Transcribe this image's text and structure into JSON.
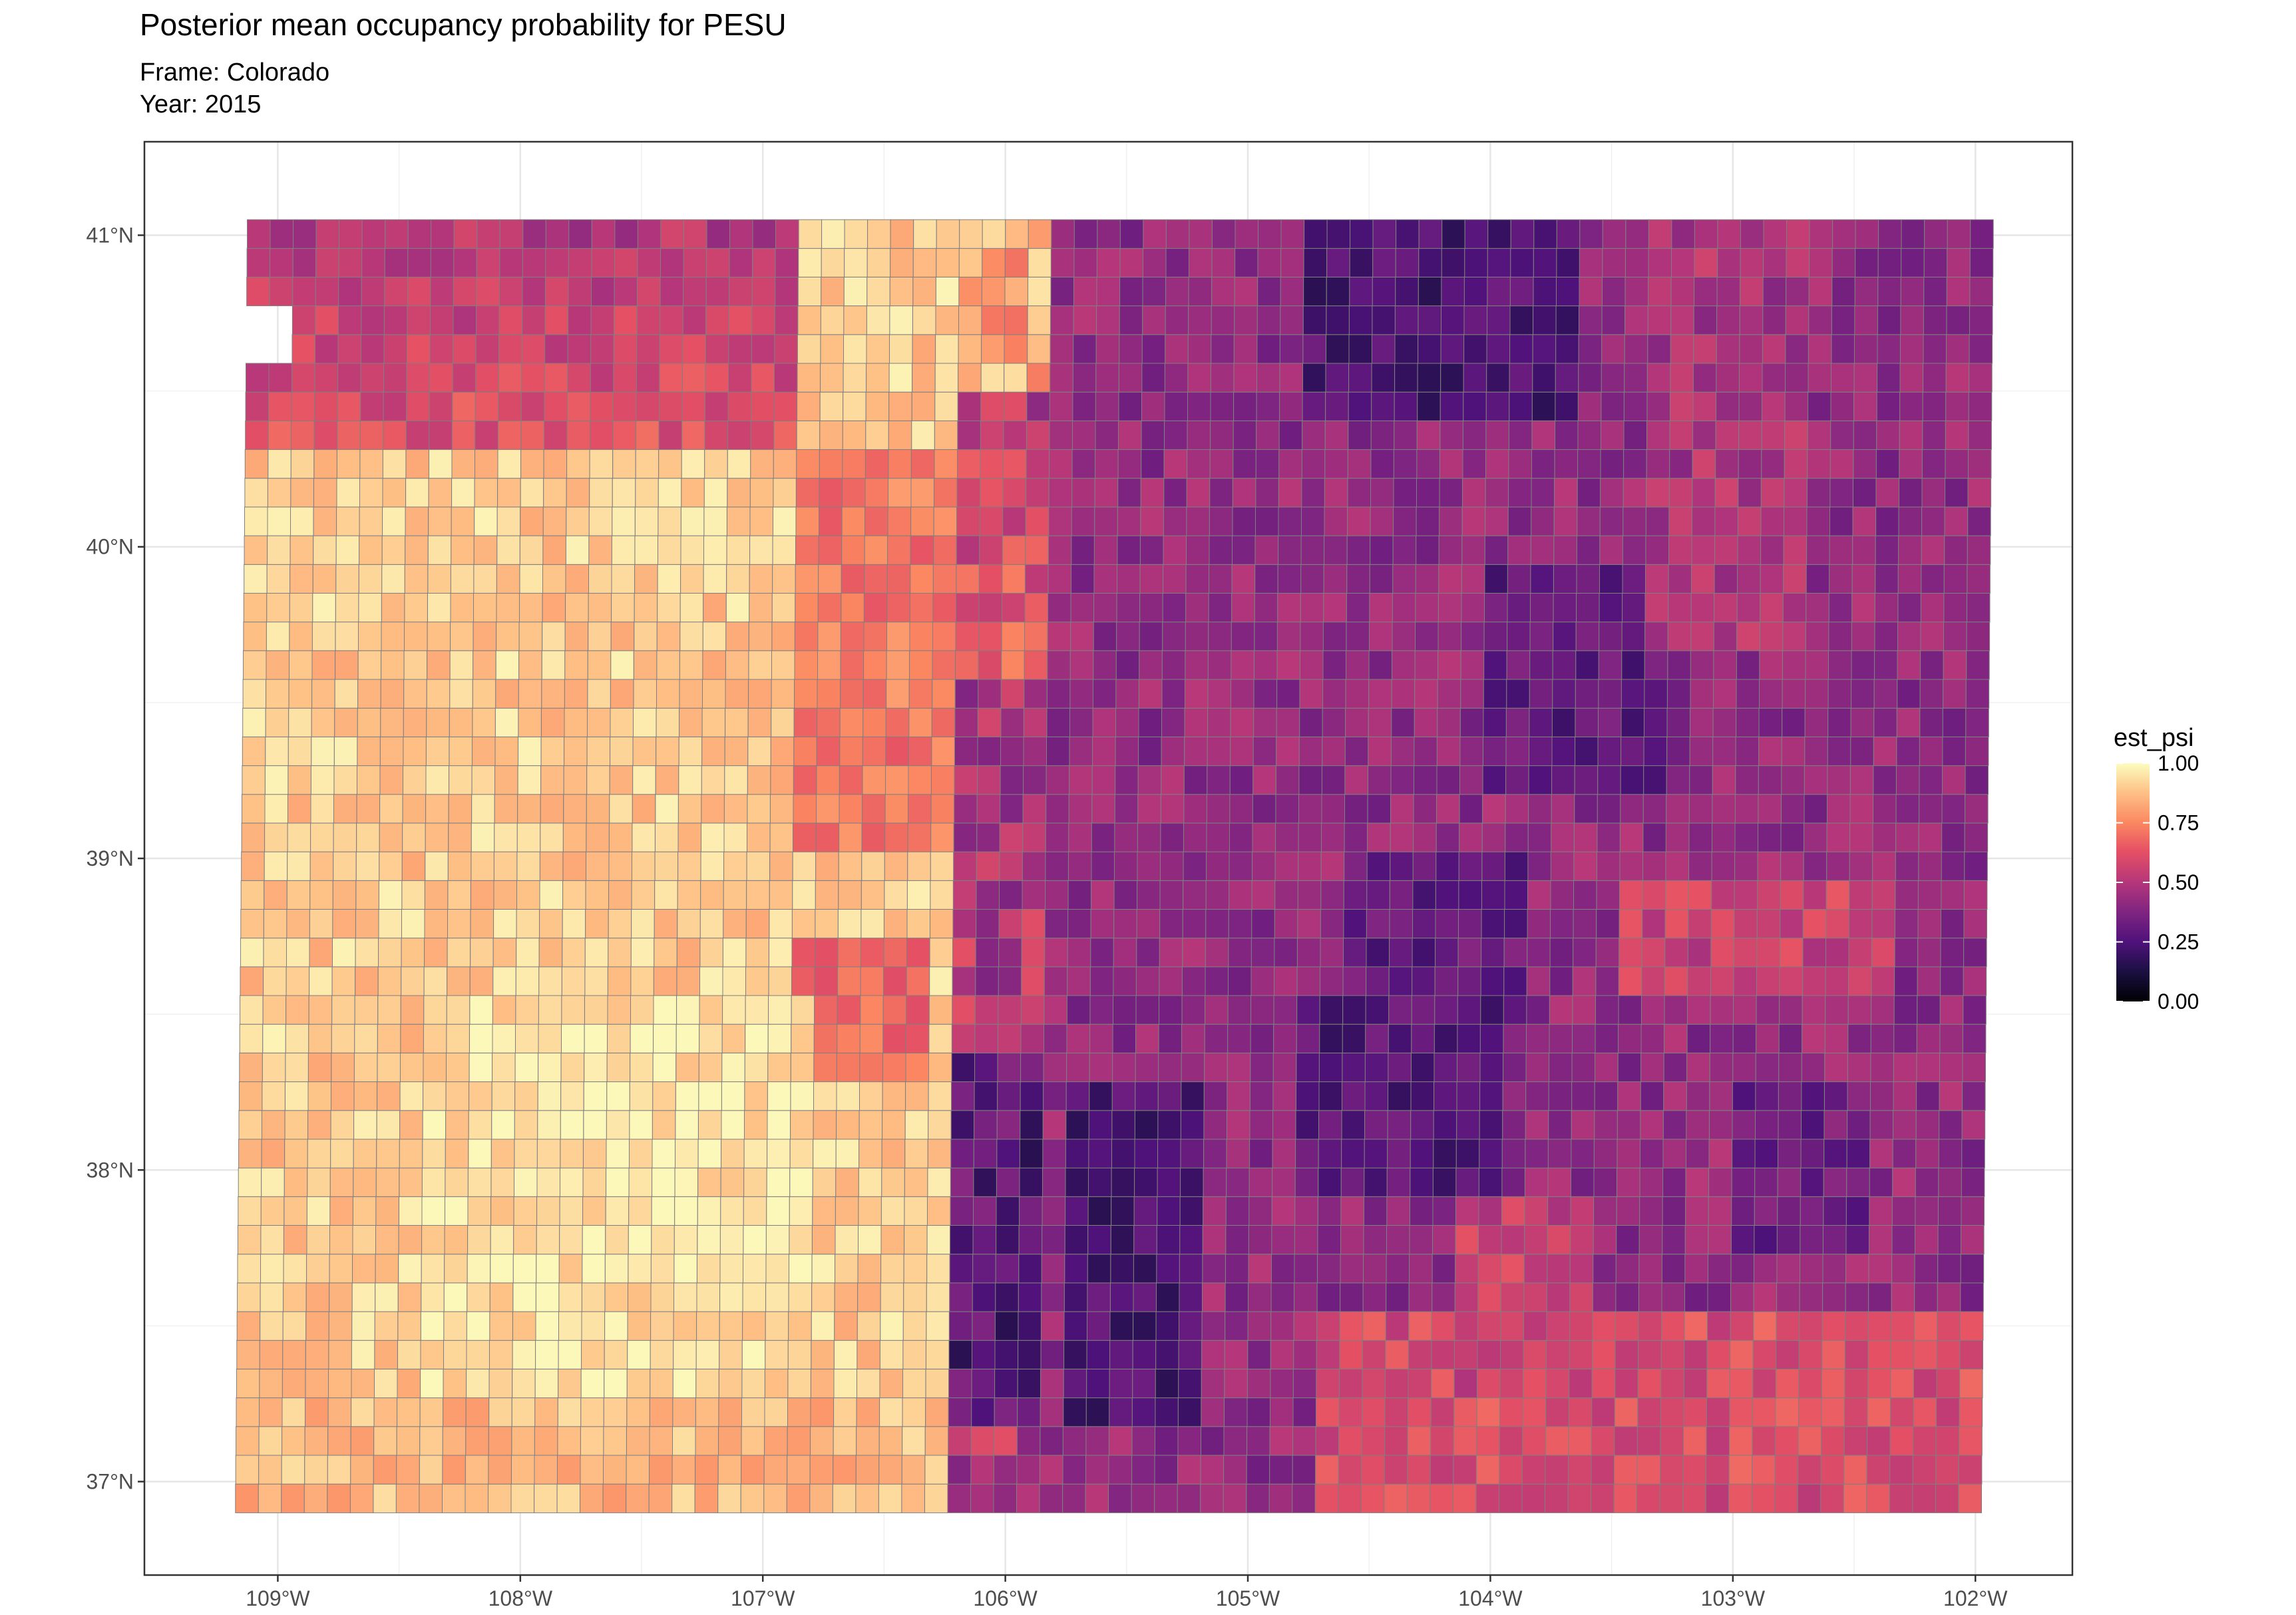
{
  "title": "Posterior mean occupancy probability for PESU",
  "subtitle_frame": "Frame: Colorado",
  "subtitle_year": "Year: 2015",
  "chart_data": {
    "type": "heatmap",
    "x_ticks": [
      -109,
      -108,
      -107,
      -106,
      -105,
      -104,
      -103,
      -102
    ],
    "x_tick_labels": [
      "109°W",
      "108°W",
      "107°W",
      "106°W",
      "105°W",
      "104°W",
      "103°W",
      "102°W"
    ],
    "y_ticks": [
      37,
      38,
      39,
      40,
      41
    ],
    "y_tick_labels": [
      "37°N",
      "38°N",
      "39°N",
      "40°N",
      "41°N"
    ],
    "xlim": [
      -109.55,
      -101.6
    ],
    "ylim": [
      36.7,
      41.3
    ],
    "grid": true,
    "colormap": "magma",
    "legend_title": "est_psi",
    "legend_values": [
      0.0,
      0.25,
      0.5,
      0.75,
      1.0
    ],
    "legend_labels": [
      "0.00",
      "0.25",
      "0.50",
      "0.75",
      "1.00"
    ],
    "legend_placement": "right",
    "values_by_region": [
      {
        "region": "west of 106.2°W, south of 40.3°N",
        "value": 0.9
      },
      {
        "region": "northwest corner (north of 40.3°N, west of 106.8°W)",
        "value": 0.6
      },
      {
        "region": "north-central mountains (40.3–41°N, 106.2–107.3°W)",
        "value": 0.9
      },
      {
        "region": "front range band (39–40.5°N, 105.8–106.8°W)",
        "value": 0.7
      },
      {
        "region": "eastern plains (east of 105.8°W)",
        "value": 0.42
      },
      {
        "region": "northeast core (40.4–41°N, 103.8–104.8°W)",
        "value": 0.28
      },
      {
        "region": "south-central valley (37.2–38.3°N, 105.3–106°W)",
        "value": 0.22
      },
      {
        "region": "southeast Arkansas valley (37.1–38°N, 102–104.6°W)",
        "value": 0.6
      }
    ]
  }
}
